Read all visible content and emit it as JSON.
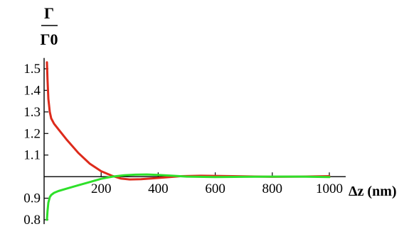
{
  "chart_data": {
    "type": "line",
    "ylabel": "Γ",
    "ylabel_denominator": "Γ0",
    "xlabel": "Δz (nm)",
    "xlim": [
      0,
      1000
    ],
    "ylim": [
      0.78,
      1.55
    ],
    "x_axis_at_y": 1.0,
    "grid": false,
    "x_ticks": [
      200,
      400,
      600,
      800,
      1000
    ],
    "y_ticks": [
      0.8,
      0.9,
      1.1,
      1.2,
      1.3,
      1.4,
      1.5
    ],
    "x_tick_labels": [
      "200",
      "400",
      "600",
      "800",
      "1000"
    ],
    "y_tick_labels": [
      "0.8",
      "0.9",
      "1.1",
      "1.2",
      "1.3",
      "1.4",
      "1.5"
    ],
    "series": [
      {
        "color": "#dd2a1b",
        "x": [
          10,
          12,
          15,
          20,
          25,
          35,
          50,
          80,
          120,
          160,
          200,
          240,
          270,
          300,
          340,
          380,
          420,
          480,
          550,
          620,
          700,
          800,
          900,
          1000
        ],
        "y": [
          1.53,
          1.45,
          1.36,
          1.3,
          1.27,
          1.245,
          1.22,
          1.17,
          1.11,
          1.06,
          1.025,
          1.003,
          0.991,
          0.987,
          0.988,
          0.992,
          0.996,
          1.002,
          1.004,
          1.003,
          1.001,
          0.999,
          1.0,
          1.002
        ]
      },
      {
        "color": "#2ee02a",
        "x": [
          10,
          12,
          15,
          20,
          25,
          35,
          50,
          80,
          120,
          160,
          200,
          240,
          280,
          320,
          360,
          400,
          450,
          500,
          600,
          700,
          800,
          900,
          1000
        ],
        "y": [
          0.8,
          0.84,
          0.88,
          0.905,
          0.915,
          0.925,
          0.933,
          0.945,
          0.96,
          0.975,
          0.99,
          1.0,
          1.006,
          1.009,
          1.01,
          1.008,
          1.004,
          1.0,
          0.998,
          0.999,
          1.0,
          1.0,
          0.998
        ]
      }
    ]
  }
}
